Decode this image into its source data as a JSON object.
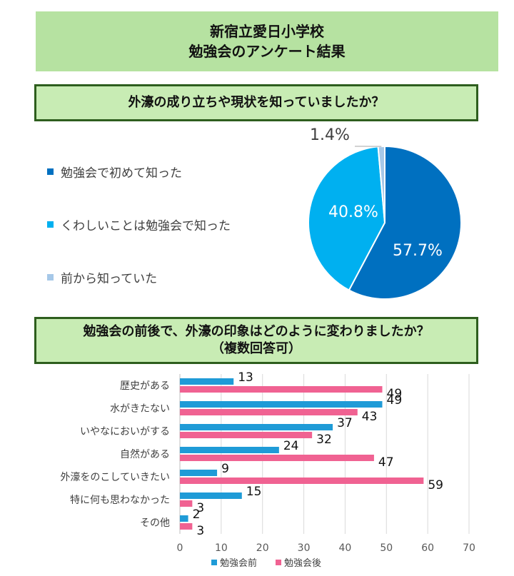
{
  "header": {
    "line1": "新宿立愛日小学校",
    "line2": "勉強会のアンケート結果"
  },
  "q1": {
    "question": "外濠の成り立ちや現状を知っていましたか？"
  },
  "q2": {
    "question_line1": "勉強会の前後で、外濠の印象はどのように変わりましたか？",
    "question_line2": "（複数回答可）"
  },
  "chart_data": [
    {
      "type": "pie",
      "title": "",
      "slices": [
        {
          "label": "勉強会で初めて知った",
          "value": 57.7,
          "value_label": "57.7%",
          "color": "#0070c0"
        },
        {
          "label": "くわしいことは勉強会で知った",
          "value": 40.8,
          "value_label": "40.8%",
          "color": "#00b0f0"
        },
        {
          "label": "前から知っていた",
          "value": 1.4,
          "value_label": "1.4%",
          "color": "#a6c8e8"
        }
      ],
      "legend_position": "left"
    },
    {
      "type": "bar",
      "orientation": "horizontal",
      "categories": [
        "歴史がある",
        "水がきたない",
        "いやなにおいがする",
        "自然がある",
        "外濠をのこしていきたい",
        "特に何も思わなかった",
        "その他"
      ],
      "series": [
        {
          "name": "勉強会前",
          "color": "#1f9bd7",
          "values": [
            13,
            49,
            37,
            24,
            9,
            15,
            2
          ]
        },
        {
          "name": "勉強会後",
          "color": "#f06292",
          "values": [
            49,
            43,
            32,
            47,
            59,
            3,
            3
          ]
        }
      ],
      "xlim": [
        0,
        70
      ],
      "xticks": [
        "0",
        "10",
        "20",
        "30",
        "40",
        "50",
        "60",
        "70"
      ],
      "grid": true,
      "legend_position": "bottom"
    }
  ]
}
